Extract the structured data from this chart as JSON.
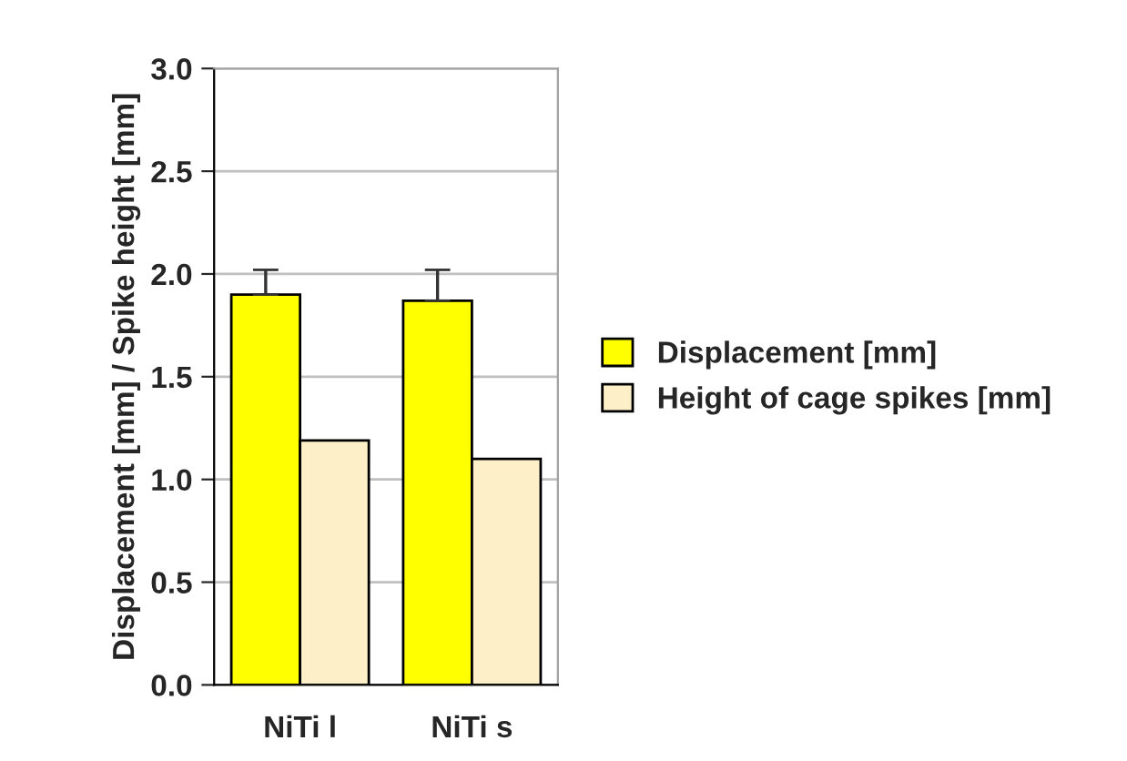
{
  "chart_data": {
    "type": "bar",
    "ylabel": "Displacement [mm] / Spike height [mm]",
    "categories": [
      "NiTi l",
      "NiTi s"
    ],
    "series": [
      {
        "name": "Displacement [mm]",
        "color": "#ffff00",
        "values": [
          1.9,
          1.87
        ],
        "errors": [
          [
            1.9,
            2.02
          ],
          [
            1.87,
            2.02
          ]
        ]
      },
      {
        "name": "Height of cage spikes [mm]",
        "color": "#fdf0c8",
        "values": [
          1.19,
          1.1
        ]
      }
    ],
    "ylim": [
      0,
      3.0
    ],
    "yticks": [
      {
        "value": 0,
        "label": "0.0"
      },
      {
        "value": 0.5,
        "label": "0.5"
      },
      {
        "value": 1.0,
        "label": "1.0"
      },
      {
        "value": 1.5,
        "label": "1.5"
      },
      {
        "value": 2.0,
        "label": "2.0"
      },
      {
        "value": 2.5,
        "label": "2.5"
      },
      {
        "value": 3.0,
        "label": "3.0"
      }
    ],
    "grid": "y",
    "legend": "right"
  }
}
